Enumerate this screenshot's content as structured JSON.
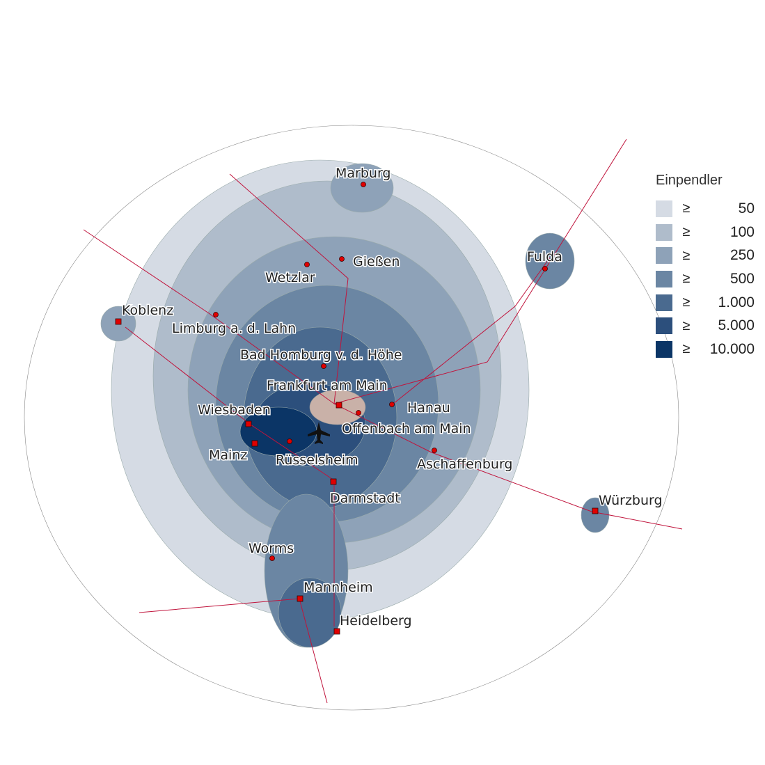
{
  "map": {
    "cities": [
      {
        "name": "Marburg",
        "marker": "circle"
      },
      {
        "name": "Gießen",
        "marker": "circle"
      },
      {
        "name": "Wetzlar",
        "marker": "circle"
      },
      {
        "name": "Fulda",
        "marker": "circle"
      },
      {
        "name": "Koblenz",
        "marker": "square"
      },
      {
        "name": "Limburg a. d. Lahn",
        "marker": "circle"
      },
      {
        "name": "Bad Homburg v. d. Höhe",
        "marker": "circle"
      },
      {
        "name": "Frankfurt am Main",
        "marker": "square"
      },
      {
        "name": "Hanau",
        "marker": "circle"
      },
      {
        "name": "Wiesbaden",
        "marker": "square"
      },
      {
        "name": "Offenbach am Main",
        "marker": "circle"
      },
      {
        "name": "Mainz",
        "marker": "square"
      },
      {
        "name": "Rüsselsheim",
        "marker": "circle"
      },
      {
        "name": "Aschaffenburg",
        "marker": "circle"
      },
      {
        "name": "Darmstadt",
        "marker": "square"
      },
      {
        "name": "Würzburg",
        "marker": "square"
      },
      {
        "name": "Worms",
        "marker": "circle"
      },
      {
        "name": "Mannheim",
        "marker": "square"
      },
      {
        "name": "Heidelberg",
        "marker": "square"
      }
    ],
    "airport_icon": "airplane-icon",
    "colors": {
      "highlight": "#c9b1a8",
      "marker": "#e00000",
      "rail": "#c0143c",
      "highway": "#ffffff"
    }
  },
  "legend": {
    "title": "Einpendler",
    "symbol": "≥",
    "classes": [
      {
        "value": "50",
        "color": "#d5dbe4"
      },
      {
        "value": "100",
        "color": "#afbccb"
      },
      {
        "value": "250",
        "color": "#8ea2b8"
      },
      {
        "value": "500",
        "color": "#6b86a3"
      },
      {
        "value": "1.000",
        "color": "#4a6a8f"
      },
      {
        "value": "5.000",
        "color": "#2c4f7c"
      },
      {
        "value": "10.000",
        "color": "#0b3566"
      }
    ]
  }
}
